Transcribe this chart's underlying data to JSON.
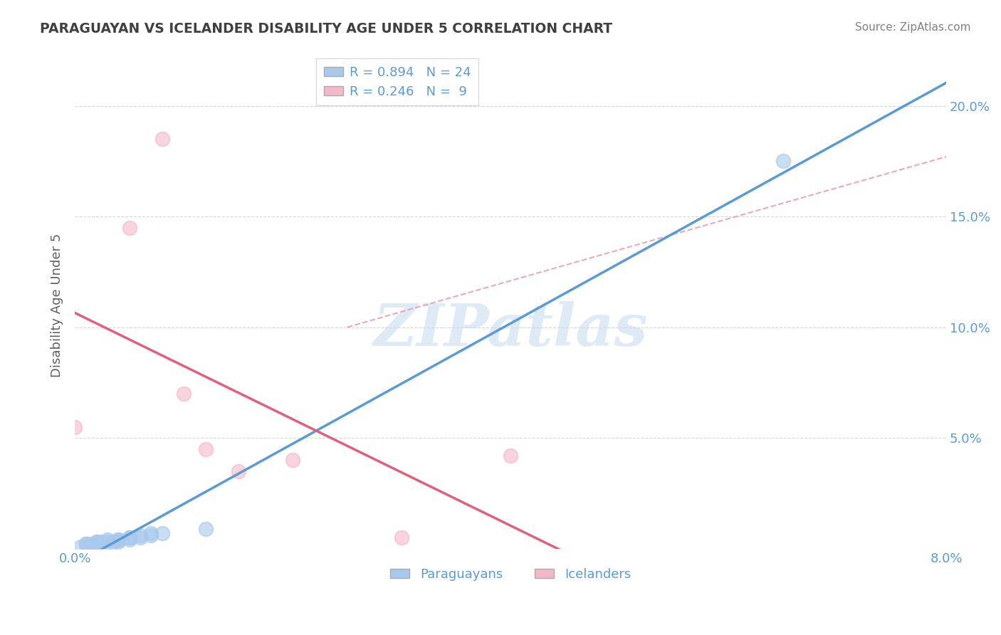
{
  "title": "PARAGUAYAN VS ICELANDER DISABILITY AGE UNDER 5 CORRELATION CHART",
  "source": "Source: ZipAtlas.com",
  "ylabel": "Disability Age Under 5",
  "xlim": [
    0.0,
    0.08
  ],
  "ylim": [
    0.0,
    0.22
  ],
  "right_yticks": [
    0.0,
    0.05,
    0.1,
    0.15,
    0.2
  ],
  "right_yticklabels": [
    "",
    "5.0%",
    "10.0%",
    "15.0%",
    "20.0%"
  ],
  "xticks": [
    0.0,
    0.01,
    0.02,
    0.03,
    0.04,
    0.05,
    0.06,
    0.07,
    0.08
  ],
  "yticks": [
    0.0,
    0.05,
    0.1,
    0.15,
    0.2
  ],
  "paraguayan_x": [
    0.0005,
    0.001,
    0.001,
    0.0015,
    0.002,
    0.002,
    0.002,
    0.0025,
    0.003,
    0.003,
    0.0035,
    0.004,
    0.004,
    0.004,
    0.005,
    0.005,
    0.005,
    0.006,
    0.006,
    0.007,
    0.007,
    0.008,
    0.012,
    0.065
  ],
  "paraguayan_y": [
    0.001,
    0.002,
    0.002,
    0.002,
    0.002,
    0.003,
    0.003,
    0.003,
    0.003,
    0.004,
    0.003,
    0.003,
    0.004,
    0.004,
    0.004,
    0.005,
    0.005,
    0.005,
    0.006,
    0.006,
    0.007,
    0.007,
    0.009,
    0.175
  ],
  "icelander_x": [
    0.0,
    0.005,
    0.008,
    0.01,
    0.012,
    0.015,
    0.02,
    0.03,
    0.04
  ],
  "icelander_y": [
    0.055,
    0.145,
    0.185,
    0.07,
    0.045,
    0.035,
    0.04,
    0.005,
    0.042
  ],
  "blue_color": "#A8C8EC",
  "pink_color": "#F4B8C8",
  "blue_line_color": "#5B9BD5",
  "pink_line_color": "#E06080",
  "pink_dash_color": "#E8A0B4",
  "watermark_color": "#C8DCF0",
  "title_color": "#404040",
  "source_color": "#808080",
  "tick_color": "#5B9BD5",
  "ylabel_color": "#606060",
  "grid_color": "#CCCCCC",
  "legend_r1": "R = 0.894",
  "legend_n1": "N = 24",
  "legend_r2": "R = 0.246",
  "legend_n2": "N =  9"
}
